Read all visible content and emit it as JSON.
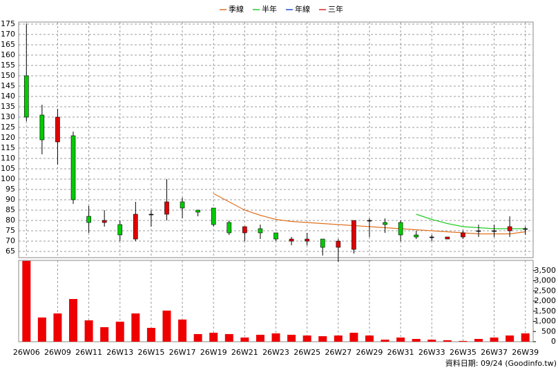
{
  "chart_data": {
    "type": "candlestick",
    "categories": [
      "26W06",
      null,
      "26W09",
      null,
      "26W11",
      null,
      "26W13",
      null,
      "26W15",
      null,
      "26W17",
      null,
      "26W19",
      null,
      "26W21",
      null,
      "26W23",
      null,
      "26W25",
      null,
      "26W27",
      null,
      "26W29",
      null,
      "26W31",
      null,
      "26W33",
      null,
      "26W35",
      null,
      "26W37",
      null,
      "26W39"
    ],
    "open": [
      150,
      131,
      118,
      121,
      82,
      79,
      78,
      71,
      83,
      83,
      89,
      85,
      86,
      79,
      74,
      76,
      74,
      70,
      70,
      71,
      67,
      66,
      80,
      79,
      79,
      73,
      72,
      71,
      72,
      75,
      75,
      75,
      76
    ],
    "high": [
      175,
      136,
      134,
      123,
      87,
      85,
      80,
      89,
      85,
      100,
      91,
      85,
      86,
      80,
      77,
      78,
      74,
      72,
      74,
      71,
      71,
      80,
      81,
      81,
      80,
      75,
      73,
      72,
      75,
      78,
      78,
      82,
      77
    ],
    "low": [
      128,
      112,
      107,
      88,
      74,
      77,
      70,
      70,
      77,
      80,
      81,
      82,
      77,
      73,
      70,
      71,
      70,
      68,
      68,
      63,
      60,
      64,
      72,
      74,
      70,
      71,
      70,
      71,
      71,
      72,
      72,
      72,
      73
    ],
    "close": [
      130,
      119,
      130,
      90,
      79,
      80,
      73,
      83,
      83,
      89,
      86,
      84,
      78,
      74,
      77,
      74,
      71,
      71,
      71,
      67,
      70,
      80,
      80,
      78,
      73,
      72,
      72,
      72,
      74,
      75,
      75,
      77,
      76
    ],
    "up_color": "#e00000",
    "down_color": "#00cc00",
    "series": [
      {
        "name": "季線",
        "color": "#e07020",
        "values": [
          null,
          null,
          null,
          null,
          null,
          null,
          null,
          null,
          null,
          null,
          null,
          null,
          93,
          89,
          85,
          82.5,
          80.5,
          79.5,
          79,
          78.5,
          78,
          77.5,
          77,
          76.5,
          76,
          75.5,
          75,
          74.5,
          74,
          73.5,
          73.5,
          73.5,
          74.5
        ]
      },
      {
        "name": "半年",
        "color": "#22cc22",
        "values": [
          null,
          null,
          null,
          null,
          null,
          null,
          null,
          null,
          null,
          null,
          null,
          null,
          null,
          null,
          null,
          null,
          null,
          null,
          null,
          null,
          null,
          null,
          null,
          null,
          null,
          83,
          80.5,
          78.5,
          77,
          76.5,
          76,
          76,
          76
        ]
      },
      {
        "name": "年線",
        "color": "#2050d0",
        "values": [
          null,
          null,
          null,
          null,
          null,
          null,
          null,
          null,
          null,
          null,
          null,
          null,
          null,
          null,
          null,
          null,
          null,
          null,
          null,
          null,
          null,
          null,
          null,
          null,
          null,
          null,
          null,
          null,
          null,
          null,
          null,
          null,
          null
        ]
      },
      {
        "name": "三年",
        "color": "#e02020",
        "values": [
          null,
          null,
          null,
          null,
          null,
          null,
          null,
          null,
          null,
          null,
          null,
          null,
          null,
          null,
          null,
          null,
          null,
          null,
          null,
          null,
          null,
          null,
          null,
          null,
          null,
          null,
          null,
          null,
          null,
          null,
          null,
          null,
          null
        ]
      }
    ],
    "volume": {
      "color": "#ee0000",
      "values": [
        3975,
        1190,
        1390,
        2100,
        1050,
        715,
        985,
        1390,
        680,
        1530,
        1090,
        375,
        440,
        375,
        205,
        340,
        410,
        340,
        305,
        270,
        305,
        440,
        305,
        100,
        205,
        135,
        100,
        70,
        35,
        135,
        205,
        305,
        410
      ]
    },
    "ylim": [
      62,
      176
    ],
    "yticks": [
      65,
      70,
      75,
      80,
      85,
      90,
      95,
      100,
      105,
      110,
      115,
      120,
      125,
      130,
      135,
      140,
      145,
      150,
      155,
      160,
      165,
      170,
      175
    ],
    "y2lim": [
      0,
      4000
    ],
    "y2ticks": [
      0,
      500,
      {
        "value": 1000,
        "label": "1,000"
      },
      {
        "value": 1500,
        "label": "1,500"
      },
      {
        "value": 2000,
        "label": "2,000"
      },
      {
        "value": 2500,
        "label": "2,500"
      },
      {
        "value": 3000,
        "label": "3,000"
      },
      {
        "value": 3500,
        "label": "3,500"
      }
    ],
    "grid": true,
    "note": "資料日期: 09/24 (Goodinfo.tw)"
  }
}
